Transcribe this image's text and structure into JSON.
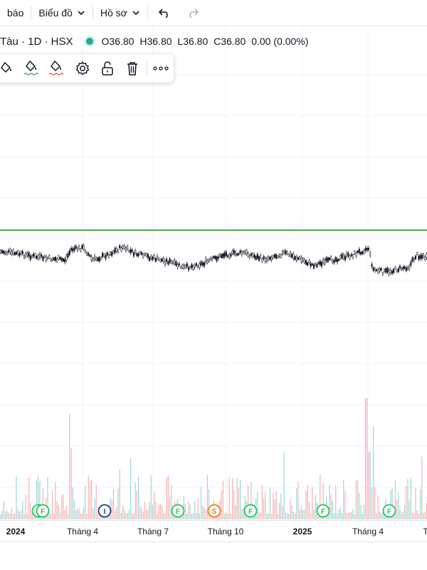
{
  "toolbar": {
    "items": [
      {
        "label": "báo"
      },
      {
        "label": "Biểu đồ"
      },
      {
        "label": "Hồ sơ"
      }
    ]
  },
  "legend": {
    "symbol": "Tàu · 1D · HSX",
    "o_label": "O",
    "o_value": "36.80",
    "h_label": "H",
    "h_value": "36.80",
    "l_label": "L",
    "l_value": "36.80",
    "c_label": "C",
    "c_value": "36.80",
    "change": "0.00 (0.00%)",
    "status_color": "#22ab94"
  },
  "drawing_toolbar": {
    "tools": [
      "paint-bucket-icon",
      "paint-bucket-icon",
      "paint-bucket-icon",
      "gear-icon",
      "unlock-icon",
      "trash-icon",
      "more-icon"
    ]
  },
  "chart_data": {
    "type": "candlestick",
    "horizontal_line_color": "#4caf50",
    "x_axis": {
      "labels": [
        {
          "text": "2024",
          "bold": true
        },
        {
          "text": "Tháng 4",
          "bold": false
        },
        {
          "text": "Tháng 7",
          "bold": false
        },
        {
          "text": "Tháng 10",
          "bold": false
        },
        {
          "text": "2025",
          "bold": true
        },
        {
          "text": "Tháng 4",
          "bold": false
        },
        {
          "text": "T",
          "bold": false
        }
      ]
    },
    "event_markers": [
      {
        "letter": "F",
        "color": "#22c55e"
      },
      {
        "letter": "F",
        "color": "#22c55e"
      },
      {
        "letter": "I",
        "color": "#1e3a8a"
      },
      {
        "letter": "F",
        "color": "#22c55e"
      },
      {
        "letter": "S",
        "color": "#f97316"
      },
      {
        "letter": "F",
        "color": "#22c55e"
      },
      {
        "letter": "F",
        "color": "#22c55e"
      },
      {
        "letter": "F",
        "color": "#22c55e"
      }
    ],
    "volume_up_color": "#26a69a",
    "volume_down_color": "#ef5350"
  }
}
